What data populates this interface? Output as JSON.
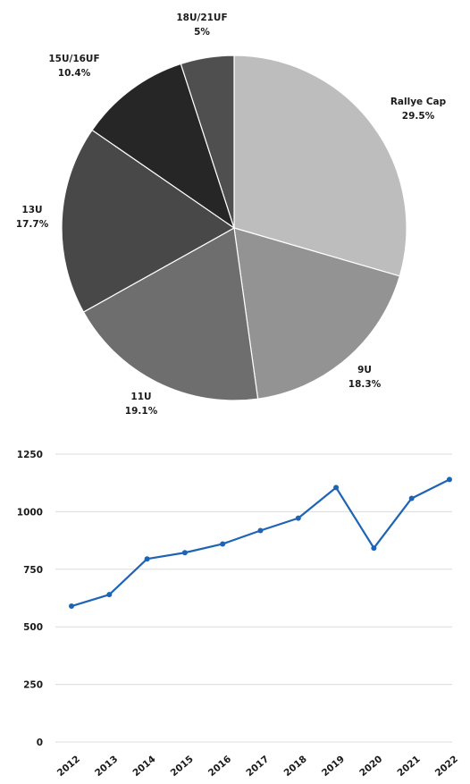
{
  "chart_data": [
    {
      "type": "pie",
      "slices": [
        {
          "label": "Rallye Cap",
          "value": 29.5,
          "value_label": "29.5%",
          "color": "#bdbdbd"
        },
        {
          "label": "9U",
          "value": 18.3,
          "value_label": "18.3%",
          "color": "#939393"
        },
        {
          "label": "11U",
          "value": 19.1,
          "value_label": "19.1%",
          "color": "#6e6e6e"
        },
        {
          "label": "13U",
          "value": 17.7,
          "value_label": "17.7%",
          "color": "#484848"
        },
        {
          "label": "15U/16UF",
          "value": 10.4,
          "value_label": "10.4%",
          "color": "#262626"
        },
        {
          "label": "18U/21UF",
          "value": 5,
          "value_label": "5%",
          "color": "#4f4f4f"
        }
      ],
      "start": "12 o'clock",
      "direction": "clockwise",
      "slice_border": "#ffffff",
      "legend": "none"
    },
    {
      "type": "line",
      "x": [
        "2012",
        "2013",
        "2014",
        "2015",
        "2016",
        "2017",
        "2018",
        "2019",
        "2020",
        "2021",
        "2022"
      ],
      "series": [
        {
          "values": [
            590,
            640,
            795,
            822,
            860,
            918,
            972,
            1105,
            842,
            1058,
            1140
          ],
          "color": "#1e64b4"
        }
      ],
      "y_ticks": [
        "0",
        "250",
        "500",
        "750",
        "1000",
        "1250"
      ],
      "ylim": [
        0,
        1250
      ],
      "grid": "horizontal",
      "gridline_color": "#dcdcdc",
      "legend": "none"
    }
  ]
}
